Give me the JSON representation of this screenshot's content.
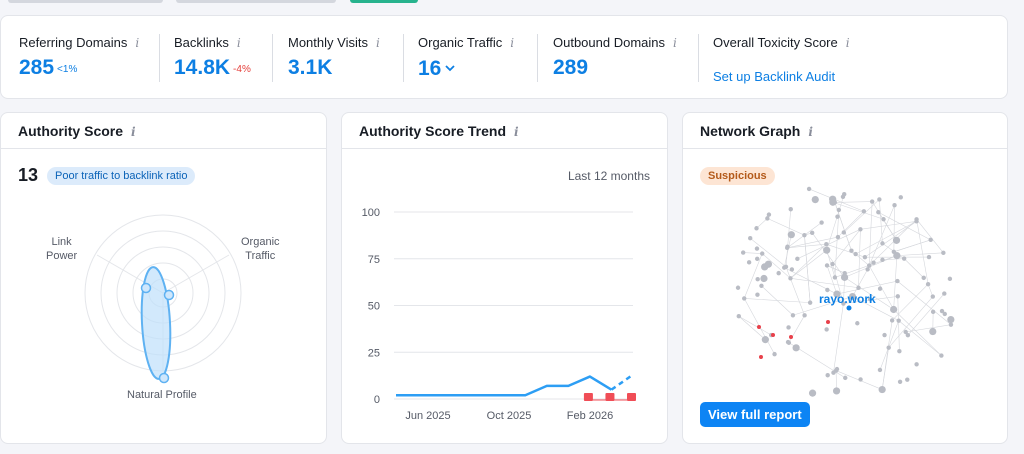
{
  "metrics": [
    {
      "label": "Referring Domains",
      "value": "285",
      "delta": "<1%",
      "delta_color": "#0d7fe3"
    },
    {
      "label": "Backlinks",
      "value": "14.8K",
      "delta": "-4%",
      "delta_color": "#e5403c"
    },
    {
      "label": "Monthly Visits",
      "value": "3.1K"
    },
    {
      "label": "Organic Traffic",
      "value": "16"
    },
    {
      "label": "Outbound Domains",
      "value": "289"
    },
    {
      "label": "Overall Toxicity Score",
      "link": "Set up Backlink Audit"
    }
  ],
  "authority": {
    "title": "Authority Score",
    "score": "13",
    "badge": "Poor traffic to backlink ratio",
    "labels": {
      "link_power": "Link\nPower",
      "organic_traffic": "Organic\nTraffic",
      "natural_profile": "Natural Profile"
    }
  },
  "trend": {
    "title": "Authority Score Trend",
    "period": "Last 12 months"
  },
  "network": {
    "title": "Network Graph",
    "badge": "Suspicious",
    "site": "rayo.work",
    "button": "View full report"
  },
  "chart_data": {
    "type": "line",
    "title": "Authority Score Trend",
    "y_ticks": [
      100,
      75,
      50,
      25,
      0
    ],
    "x_ticks": [
      "Jun 2025",
      "Oct 2025",
      "Feb 2026"
    ],
    "ylim": [
      0,
      100
    ],
    "series": [
      {
        "x": [
          "2025-04",
          "2025-05",
          "2025-06",
          "2025-07",
          "2025-08",
          "2025-09",
          "2025-10",
          "2025-11",
          "2025-12",
          "2026-01",
          "2026-02",
          "2026-03"
        ],
        "values": [
          2,
          2,
          2,
          2,
          2,
          2,
          2,
          7,
          7,
          12,
          5,
          13
        ]
      }
    ],
    "projected_from_index": 10,
    "markers_x_index": [
      9,
      10,
      11
    ],
    "grid": true
  }
}
